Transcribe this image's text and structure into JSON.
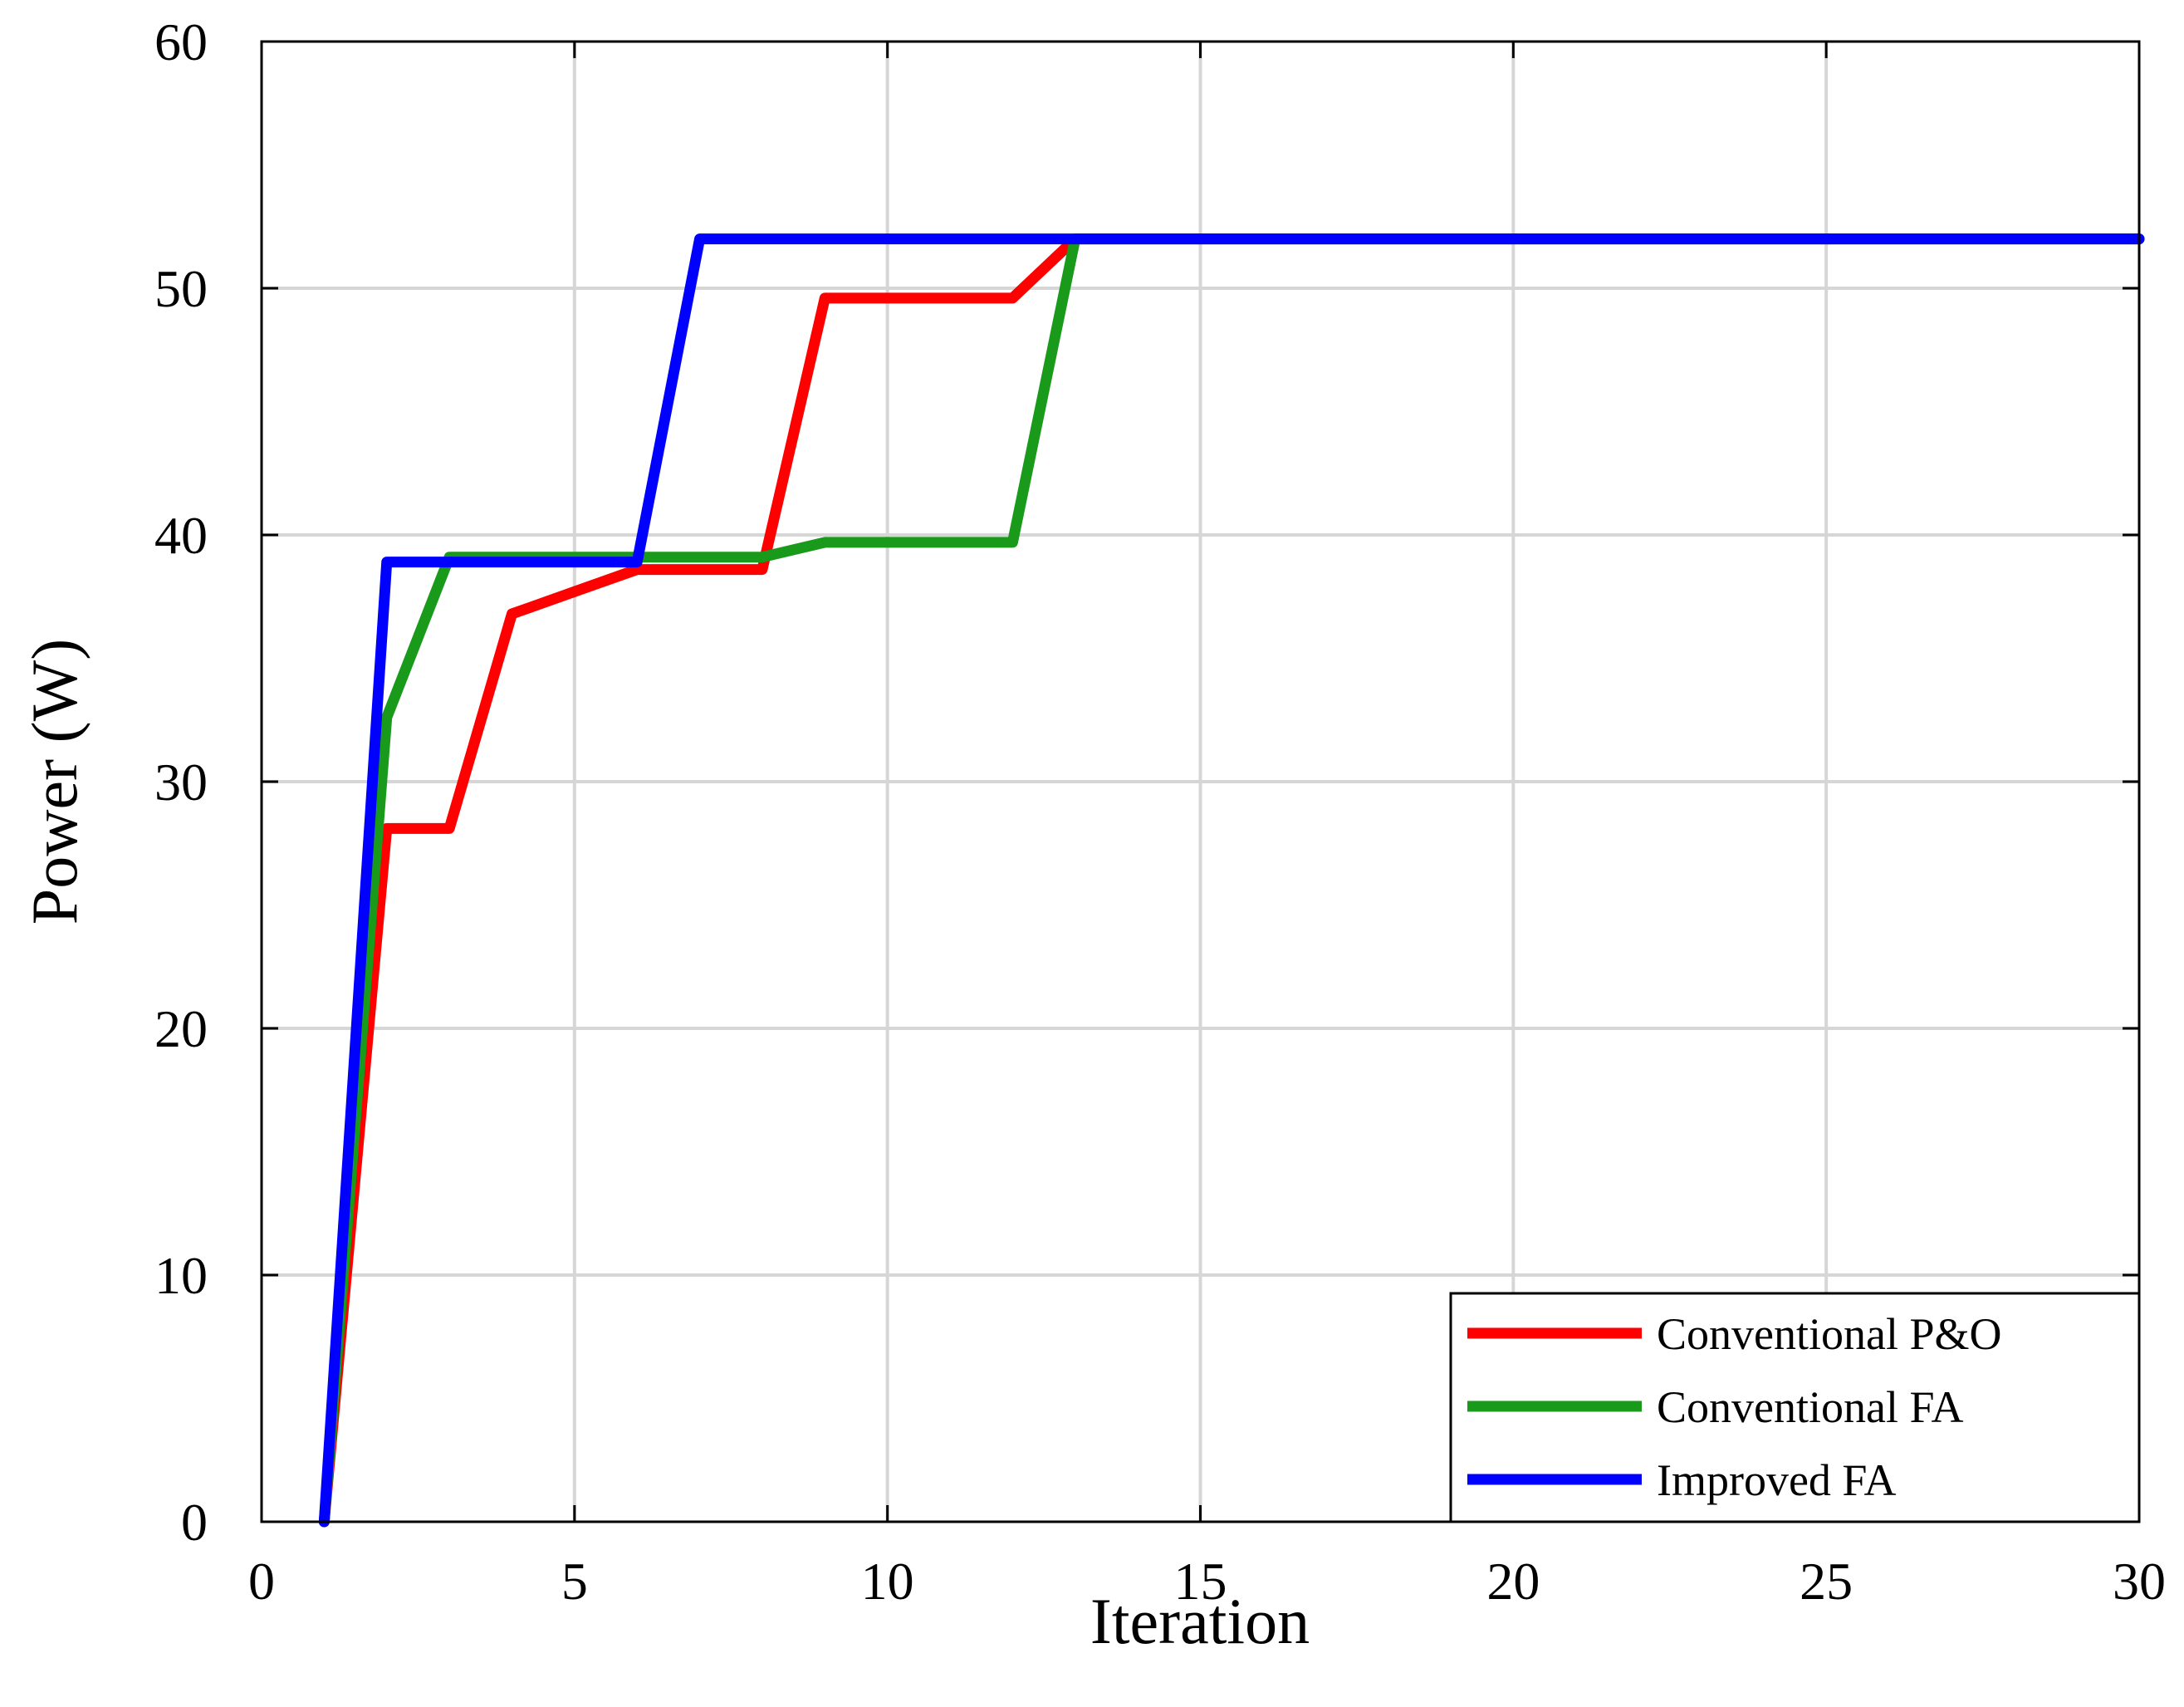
{
  "chart_data": {
    "type": "line",
    "title": "",
    "xlabel": "Iteration",
    "ylabel": "Power (W)",
    "xlim": [
      0,
      30
    ],
    "ylim": [
      0,
      60
    ],
    "xticks": [
      0,
      5,
      10,
      15,
      20,
      25,
      30
    ],
    "yticks": [
      0,
      10,
      20,
      30,
      40,
      50,
      60
    ],
    "grid": true,
    "legend_position": "bottom-right",
    "series": [
      {
        "name": "Conventional P&O",
        "color": "#ff0000",
        "x": [
          1,
          2,
          3,
          4,
          5,
          6,
          7,
          8,
          9,
          10,
          11,
          12,
          13,
          14,
          15,
          16,
          17,
          18,
          19,
          20,
          21,
          22,
          23,
          24,
          25,
          26,
          27,
          28,
          29,
          30
        ],
        "y": [
          0,
          28.1,
          28.1,
          36.8,
          37.7,
          38.6,
          38.6,
          38.6,
          49.6,
          49.6,
          49.6,
          49.6,
          52,
          52,
          52,
          52,
          52,
          52,
          52,
          52,
          52,
          52,
          52,
          52,
          52,
          52,
          52,
          52,
          52,
          52
        ]
      },
      {
        "name": "Conventional FA",
        "color": "#1a9a1a",
        "x": [
          1,
          2,
          3,
          4,
          5,
          6,
          7,
          8,
          9,
          10,
          11,
          12,
          13,
          14,
          15,
          16,
          17,
          18,
          19,
          20,
          21,
          22,
          23,
          24,
          25,
          26,
          27,
          28,
          29,
          30
        ],
        "y": [
          0,
          32.6,
          39.1,
          39.1,
          39.1,
          39.1,
          39.1,
          39.1,
          39.7,
          39.7,
          39.7,
          39.7,
          52,
          52,
          52,
          52,
          52,
          52,
          52,
          52,
          52,
          52,
          52,
          52,
          52,
          52,
          52,
          52,
          52,
          52
        ]
      },
      {
        "name": "Improved FA",
        "color": "#0000ff",
        "x": [
          1,
          2,
          3,
          4,
          5,
          6,
          7,
          8,
          9,
          10,
          11,
          12,
          13,
          14,
          15,
          16,
          17,
          18,
          19,
          20,
          21,
          22,
          23,
          24,
          25,
          26,
          27,
          28,
          29,
          30
        ],
        "y": [
          0,
          38.9,
          38.9,
          38.9,
          38.9,
          38.9,
          52,
          52,
          52,
          52,
          52,
          52,
          52,
          52,
          52,
          52,
          52,
          52,
          52,
          52,
          52,
          52,
          52,
          52,
          52,
          52,
          52,
          52,
          52,
          52
        ]
      }
    ]
  }
}
